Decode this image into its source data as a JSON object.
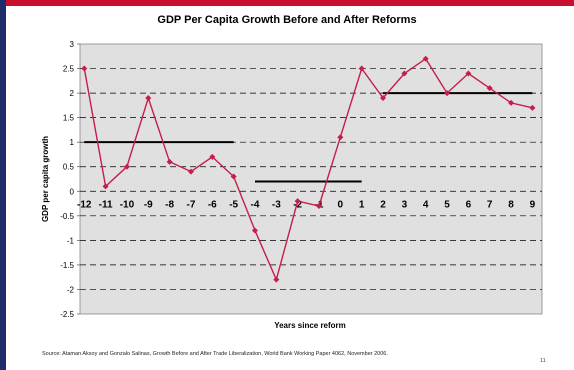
{
  "slide": {
    "source": "Source: Ataman Aksoy and Gonzalo Salinas, Growth Before and After Trade Liberalization, World Bank Working Paper 4062, November  2006.",
    "page_number": "11",
    "accent_color": "#c8102e",
    "side_color": "#1f2e6b"
  },
  "chart_data": {
    "type": "line",
    "title": "GDP Per Capita Growth Before and After Reforms",
    "xlabel": "Years since reform",
    "ylabel": "GDP per capita growth",
    "ylim": [
      -2.5,
      3
    ],
    "yticks": [
      -2.5,
      -2,
      -1.5,
      -1,
      -0.5,
      0,
      0.5,
      1,
      1.5,
      2,
      2.5,
      3
    ],
    "ytick_labels": [
      "-2.5",
      "-2",
      "-1.5",
      "-1",
      "-0.5",
      "0",
      "0.5",
      "1",
      "1.5",
      "2",
      "2.5",
      "3"
    ],
    "x": [
      -12,
      -11,
      -10,
      -9,
      -8,
      -7,
      -6,
      -5,
      -4,
      -3,
      -2,
      -1,
      0,
      1,
      2,
      3,
      4,
      5,
      6,
      7,
      8,
      9
    ],
    "xtick_labels": [
      "-12",
      "-11",
      "-10",
      "-9",
      "-8",
      "-7",
      "-6",
      "-5",
      "-4",
      "-3",
      "-2",
      "-1",
      "0",
      "1",
      "2",
      "3",
      "4",
      "5",
      "6",
      "7",
      "8",
      "9"
    ],
    "series": [
      {
        "values": [
          2.5,
          0.1,
          0.5,
          1.9,
          0.6,
          0.4,
          0.7,
          0.3,
          -0.8,
          -1.8,
          -0.2,
          -0.3,
          1.1,
          2.5,
          1.9,
          2.4,
          2.7,
          2.0,
          2.4,
          2.1,
          1.8,
          1.7
        ],
        "color": "#c41e4a"
      }
    ],
    "averages": [
      {
        "x_start": -12,
        "x_end": -5,
        "value": 1.0
      },
      {
        "x_start": -4,
        "x_end": 1,
        "value": 0.2
      },
      {
        "x_start": 2,
        "x_end": 9,
        "value": 2.0
      }
    ],
    "grid": true,
    "grid_style": "dashed",
    "background": "#e0e0e0"
  }
}
